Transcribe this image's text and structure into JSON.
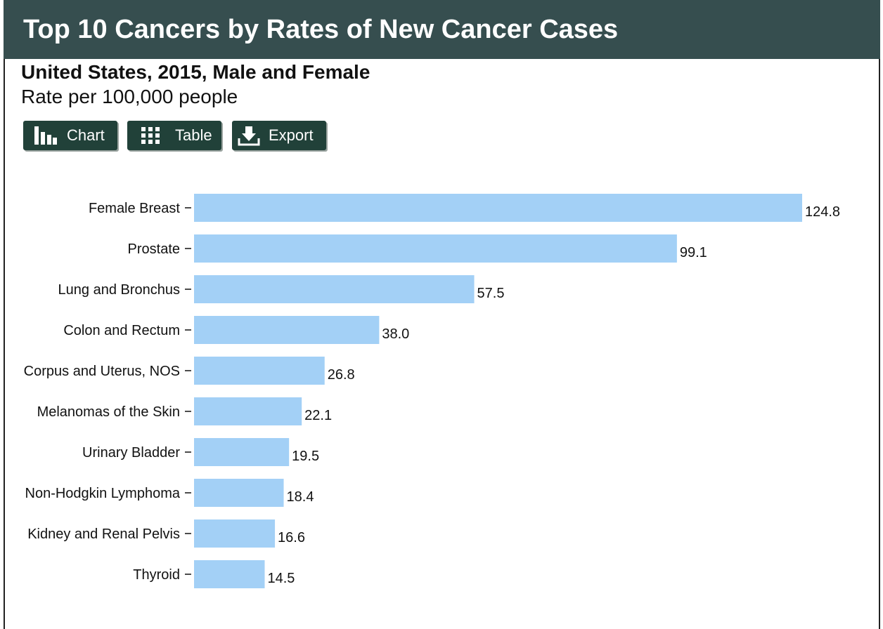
{
  "header": {
    "title": "Top 10 Cancers by Rates of New Cancer Cases"
  },
  "subtitle": "United States, 2015, Male and Female",
  "units": "Rate per 100,000 people",
  "toolbar": {
    "chart_label": "Chart",
    "table_label": "Table",
    "export_label": "Export",
    "chart_icon": "bar-chart-icon",
    "table_icon": "grid-icon",
    "export_icon": "download-icon"
  },
  "colors": {
    "header_bg": "#364e4f",
    "button_bg": "#214139",
    "bar": "#a3d0f6"
  },
  "chart_data": {
    "type": "bar",
    "orientation": "horizontal",
    "categories": [
      "Female Breast",
      "Prostate",
      "Lung and Bronchus",
      "Colon and Rectum",
      "Corpus and Uterus, NOS",
      "Melanomas of the Skin",
      "Urinary Bladder",
      "Non-Hodgkin Lymphoma",
      "Kidney and Renal Pelvis",
      "Thyroid"
    ],
    "values": [
      124.8,
      99.1,
      57.5,
      38.0,
      26.8,
      22.1,
      19.5,
      18.4,
      16.6,
      14.5
    ],
    "value_labels": [
      "124.8",
      "99.1",
      "57.5",
      "38.0",
      "26.8",
      "22.1",
      "19.5",
      "18.4",
      "16.6",
      "14.5"
    ],
    "title": "Top 10 Cancers by Rates of New Cancer Cases",
    "subtitle": "United States, 2015, Male and Female",
    "xlabel": "",
    "ylabel": "",
    "xlim": [
      0,
      124.8
    ],
    "grid": false,
    "legend": "none"
  }
}
